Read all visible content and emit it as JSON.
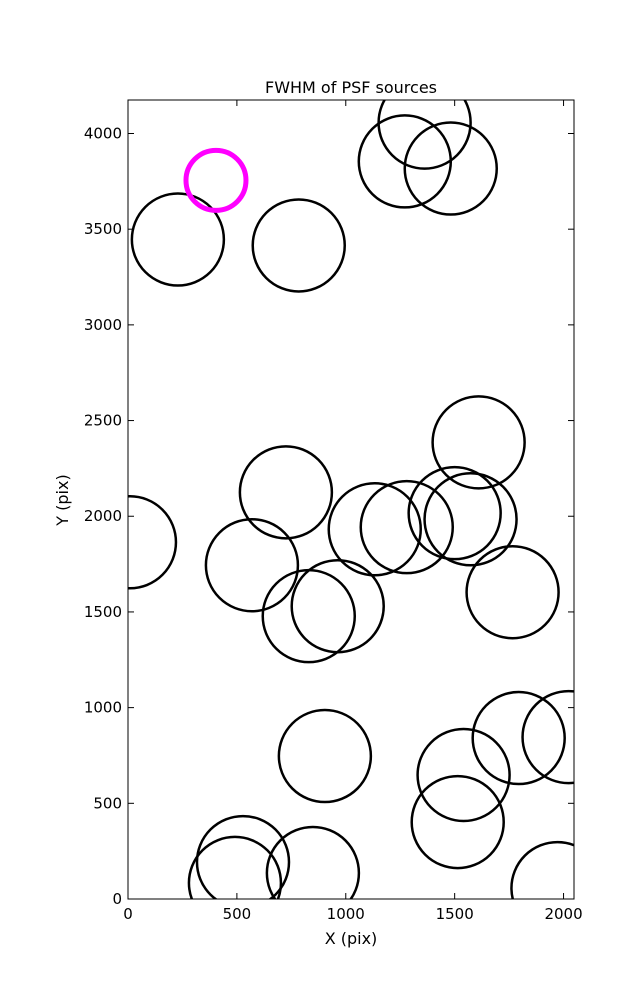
{
  "chart_data": {
    "type": "scatter",
    "title": "FWHM of PSF sources",
    "x_label": "X (pix)",
    "y_label": "Y (pix)",
    "xlim": [
      0,
      2048
    ],
    "ylim": [
      0,
      4175
    ],
    "xticks": [
      0,
      500,
      1000,
      1500,
      2000
    ],
    "yticks": [
      0,
      500,
      1000,
      1500,
      2000,
      2500,
      3000,
      3500,
      4000
    ],
    "series": [
      {
        "color": "#000000",
        "x": [
          1362,
          1271,
          1482,
          229,
          784,
          1610,
          725,
          9,
          1133,
          1280,
          1500,
          1573,
          569,
          963,
          830,
          1766,
          904,
          1541,
          1794,
          2023,
          1514,
          528,
          491,
          849,
          1972
        ],
        "values": [
          4057,
          3854,
          3817,
          3446,
          3415,
          2386,
          2125,
          1864,
          1932,
          1943,
          2016,
          1984,
          1744,
          1530,
          1478,
          1603,
          747,
          648,
          841,
          846,
          402,
          193,
          84,
          136,
          57
        ]
      },
      {
        "color": "#ff00ff",
        "x": [
          404
        ],
        "values": [
          3755
        ]
      }
    ]
  }
}
